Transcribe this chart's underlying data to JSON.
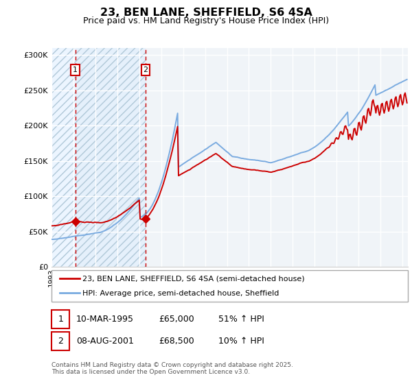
{
  "title": "23, BEN LANE, SHEFFIELD, S6 4SA",
  "subtitle": "Price paid vs. HM Land Registry's House Price Index (HPI)",
  "legend_line1": "23, BEN LANE, SHEFFIELD, S6 4SA (semi-detached house)",
  "legend_line2": "HPI: Average price, semi-detached house, Sheffield",
  "footer": "Contains HM Land Registry data © Crown copyright and database right 2025.\nThis data is licensed under the Open Government Licence v3.0.",
  "sale1_date": "10-MAR-1995",
  "sale1_price": "£65,000",
  "sale1_hpi": "51% ↑ HPI",
  "sale1_year": 1995.19,
  "sale1_value": 65000,
  "sale2_date": "08-AUG-2001",
  "sale2_price": "£68,500",
  "sale2_hpi": "10% ↑ HPI",
  "sale2_year": 2001.6,
  "sale2_value": 68500,
  "ylim": [
    0,
    310000
  ],
  "yticks": [
    0,
    50000,
    100000,
    150000,
    200000,
    250000,
    300000
  ],
  "sale_line_color": "#cc0000",
  "hpi_line_color": "#7aabe0",
  "background_hatch": "#ddeeff",
  "grid_color": "#ffffff",
  "chart_bg": "#f0f4f8"
}
